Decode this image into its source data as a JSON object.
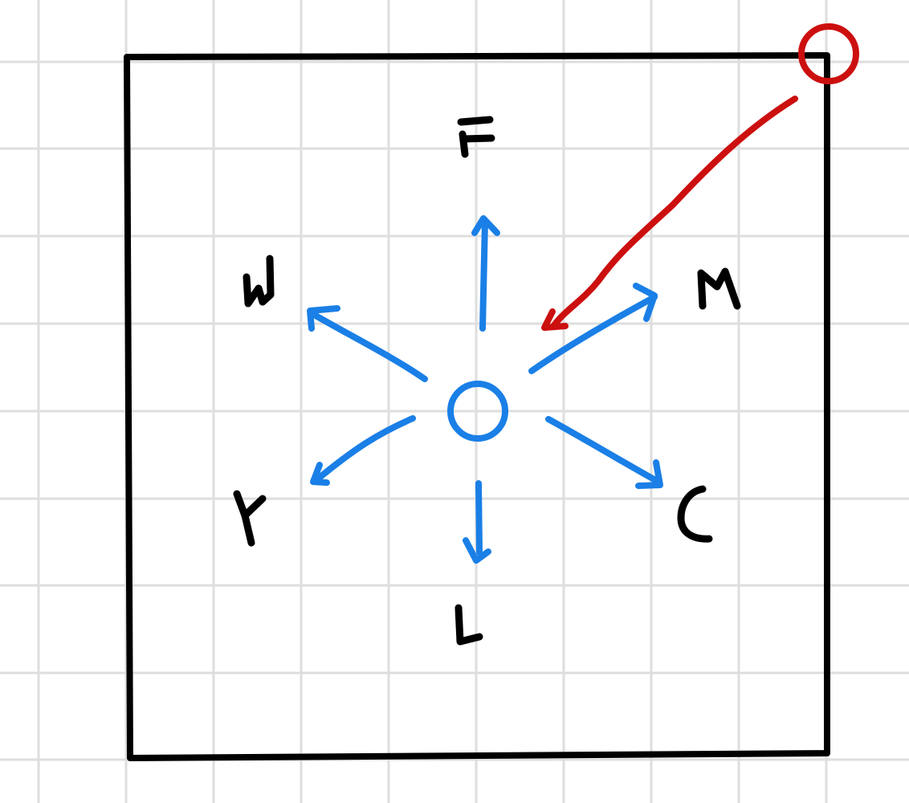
{
  "diagram": {
    "labels": {
      "top": "F",
      "upper_left": "W",
      "upper_right": "M",
      "lower_left": "Y",
      "lower_right": "C",
      "bottom": "L"
    },
    "colors": {
      "grid": "#dedede",
      "frame": "#000000",
      "center_and_arrows": "#1a7fe6",
      "highlight": "#cc0f0f",
      "background": "#ffffff"
    }
  }
}
